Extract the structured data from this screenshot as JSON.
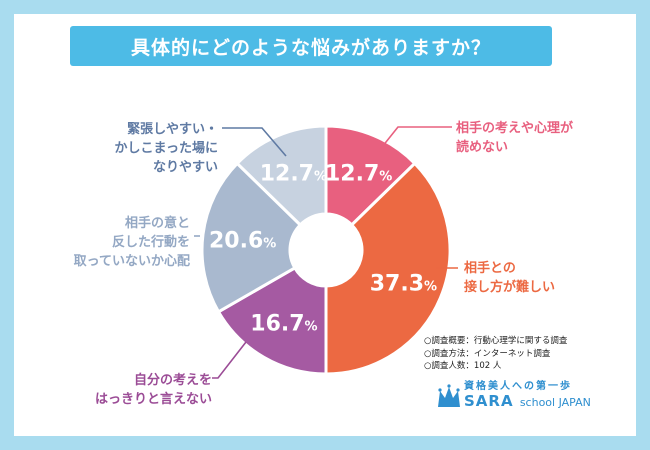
{
  "title": "具体的にどのような悩みがありますか？",
  "colors": {
    "background": "#a9dcef",
    "title_bar": "#4dbbe6",
    "brand": "#2f8fcf"
  },
  "chart_data": {
    "type": "pie",
    "style": "donut",
    "title": "具体的にどのような悩みがありますか？",
    "slices": [
      {
        "label": "相手の考えや心理が\n読めない",
        "value": 12.7,
        "value_text": "12.7",
        "unit": "%",
        "color": "#e8607f",
        "label_color": "#e8607f"
      },
      {
        "label": "相手との\n接し方が難しい",
        "value": 37.3,
        "value_text": "37.3",
        "unit": "%",
        "color": "#ec6942",
        "label_color": "#ec6942"
      },
      {
        "label": "自分の考えを\nはっきりと言えない",
        "value": 16.7,
        "value_text": "16.7",
        "unit": "%",
        "color": "#a55aa2",
        "label_color": "#9b4c96"
      },
      {
        "label": "相手の意と\n反した行動を\n取っていないか心配",
        "value": 20.6,
        "value_text": "20.6",
        "unit": "%",
        "color": "#a9b9cf",
        "label_color": "#94a8c4"
      },
      {
        "label": "緊張しやすい・\nかしこまった場に\nなりやすい",
        "value": 12.7,
        "value_text": "12.7",
        "unit": "%",
        "color": "#c7d2e0",
        "label_color": "#5f7aa3"
      }
    ]
  },
  "survey": {
    "line1": "○調査概要：行動心理学に関する調査",
    "line2": "○調査方法：インターネット調査",
    "line3": "○調査人数：102 人"
  },
  "logo": {
    "tagline": "資格美人への第一歩",
    "name": "SARA",
    "sub": "school JAPAN",
    "icon": "crown-icon"
  }
}
